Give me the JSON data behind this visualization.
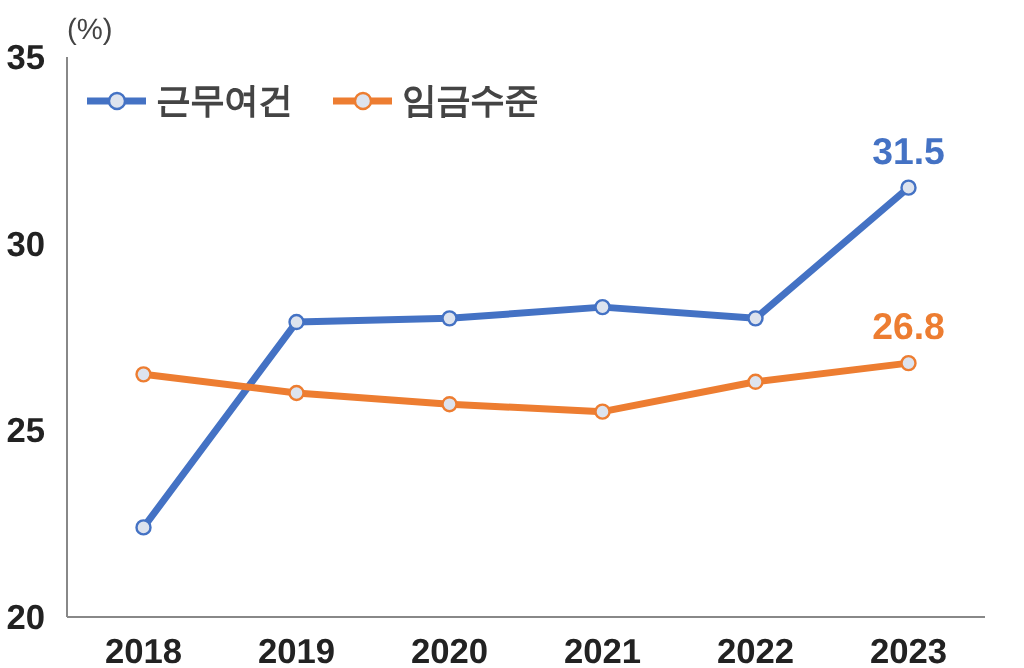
{
  "chart_data": {
    "type": "line",
    "ylabel": "(%)",
    "categories": [
      "2018",
      "2019",
      "2020",
      "2021",
      "2022",
      "2023"
    ],
    "ylim": [
      20,
      35
    ],
    "yticks": [
      20,
      25,
      30,
      35
    ],
    "grid": false,
    "legend": "top left",
    "marker": "circle",
    "line_style": "solid",
    "series": [
      {
        "name": "근무여건",
        "color": "#4472c4",
        "values": [
          22.4,
          27.9,
          28.0,
          28.3,
          28.0,
          31.5
        ],
        "value_labels": [
          null,
          null,
          null,
          null,
          null,
          "31.5"
        ]
      },
      {
        "name": "임금수준",
        "color": "#ed7d31",
        "values": [
          26.5,
          26.0,
          25.7,
          25.5,
          26.3,
          26.8
        ],
        "value_labels": [
          null,
          null,
          null,
          null,
          null,
          "26.8"
        ]
      }
    ]
  }
}
